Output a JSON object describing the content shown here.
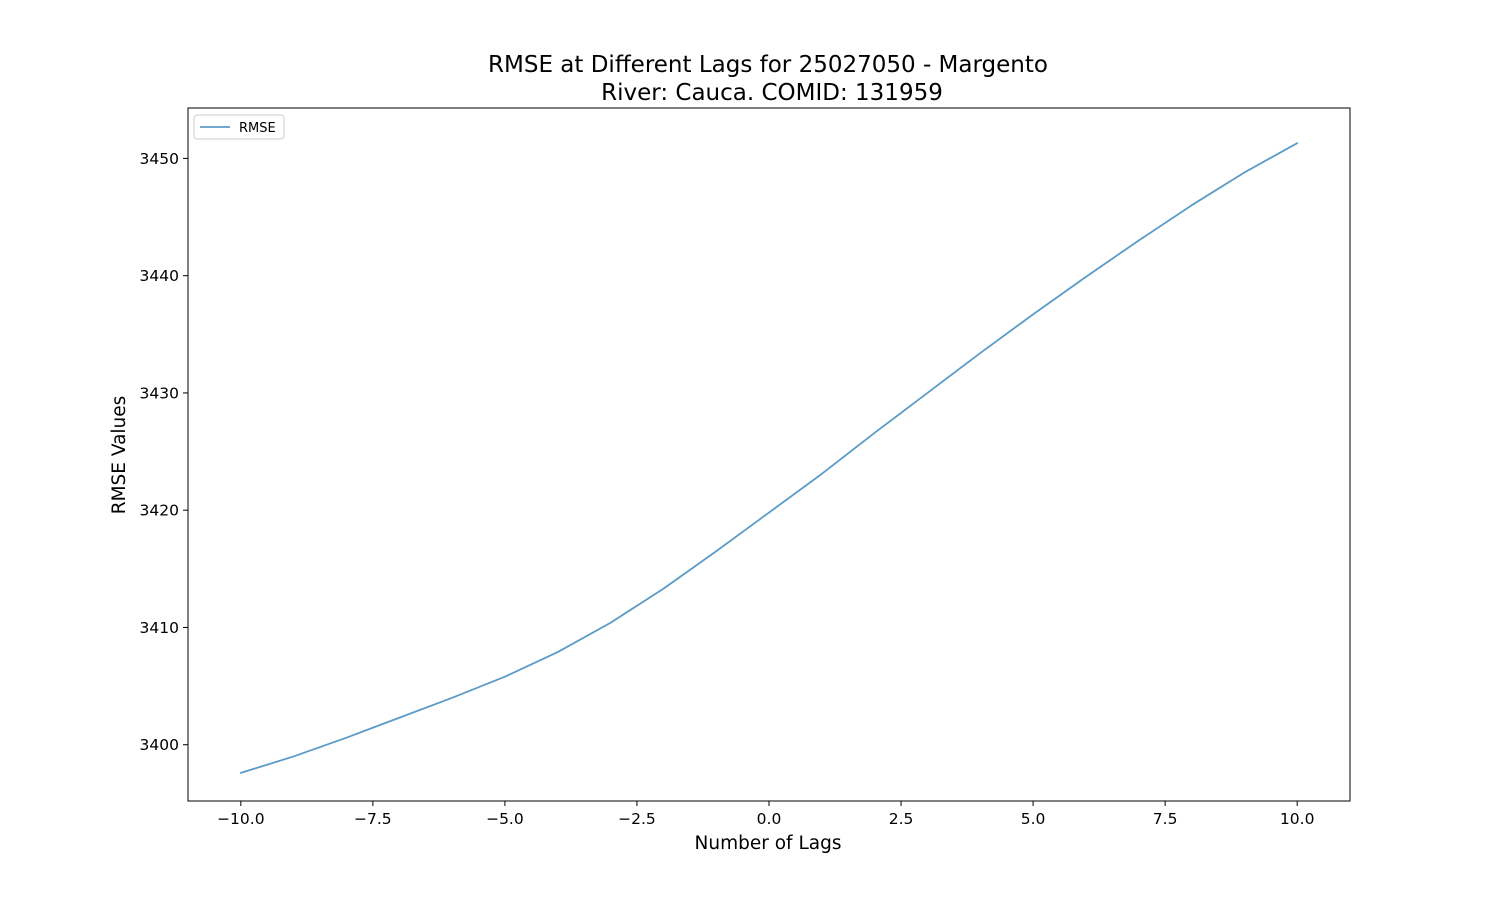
{
  "chart_data": {
    "type": "line",
    "title": "RMSE at Different Lags for 25027050 - Margento",
    "subtitle": "River: Cauca. COMID: 131959",
    "xlabel": "Number of Lags",
    "ylabel": "RMSE Values",
    "xlim": [
      -11.0,
      11.0
    ],
    "ylim": [
      3395.2,
      3454.3
    ],
    "x_ticks": [
      -10.0,
      -7.5,
      -5.0,
      -2.5,
      0.0,
      2.5,
      5.0,
      7.5,
      10.0
    ],
    "x_tick_labels": [
      "−10.0",
      "−7.5",
      "−5.0",
      "−2.5",
      "0.0",
      "2.5",
      "5.0",
      "7.5",
      "10.0"
    ],
    "y_ticks": [
      3400,
      3410,
      3420,
      3430,
      3440,
      3450
    ],
    "y_tick_labels": [
      "3400",
      "3410",
      "3420",
      "3430",
      "3440",
      "3450"
    ],
    "grid": false,
    "legend_position": "top-left",
    "series": [
      {
        "name": "RMSE",
        "color": "#5b9bc8",
        "x": [
          -10,
          -9,
          -8,
          -7,
          -6,
          -5,
          -4,
          -3,
          -2,
          -1,
          0,
          1,
          2,
          3,
          4,
          5,
          6,
          7,
          8,
          9,
          10
        ],
        "y": [
          3397.6,
          3399.0,
          3400.6,
          3402.3,
          3404.0,
          3405.8,
          3407.9,
          3410.4,
          3413.3,
          3416.5,
          3419.8,
          3423.1,
          3426.6,
          3430.0,
          3433.4,
          3436.7,
          3439.9,
          3443.0,
          3446.0,
          3448.8,
          3451.3
        ]
      }
    ]
  }
}
